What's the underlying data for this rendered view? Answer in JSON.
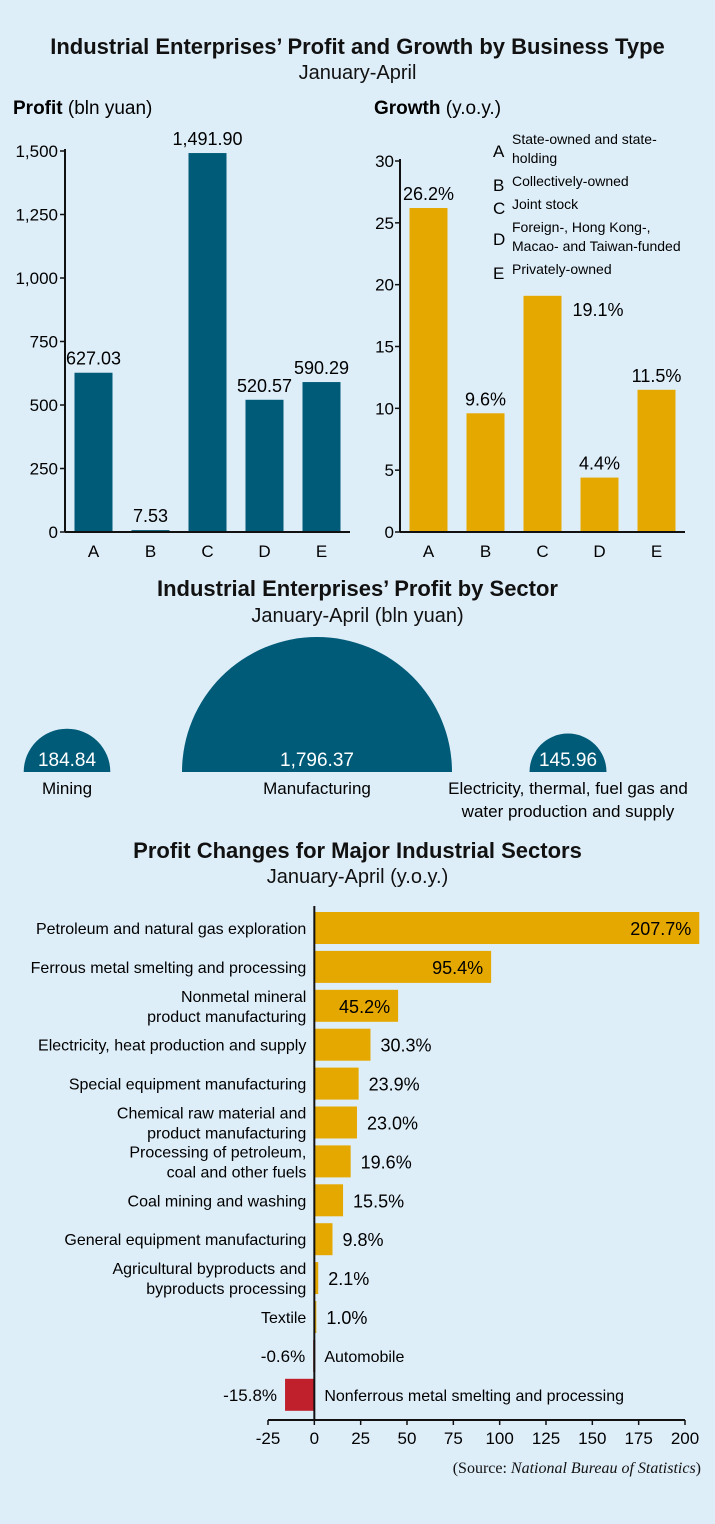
{
  "header": {
    "title": "Industrial Enterprises’ Profit and Growth by Business Type",
    "subtitle": "January-April"
  },
  "sector_header": {
    "title": "Industrial Enterprises’ Profit by Sector",
    "subtitle": "January-April (bln yuan)"
  },
  "changes_header": {
    "title": "Profit Changes for Major Industrial Sectors",
    "subtitle": "January-April (y.o.y.)"
  },
  "source": {
    "prefix": "(Source: ",
    "name": "National Bureau of Statistics",
    "suffix": ")"
  },
  "colors": {
    "teal": "#005b78",
    "gold": "#e5a800",
    "red": "#c01f2c",
    "background": "#deeef9"
  },
  "chart_data": [
    {
      "type": "bar",
      "ylabel_bold": "Profit",
      "ylabel_rest": " (bln yuan)",
      "categories": [
        "A",
        "B",
        "C",
        "D",
        "E"
      ],
      "values": [
        627.03,
        7.53,
        1491.9,
        520.57,
        590.29
      ],
      "value_labels": [
        "627.03",
        "7.53",
        "1,491.90",
        "520.57",
        "590.29"
      ],
      "ylim": [
        0,
        1500
      ],
      "yticks": [
        0,
        250,
        500,
        750,
        1000,
        1250,
        1500
      ],
      "ytick_labels": [
        "0",
        "250",
        "500",
        "750",
        "1,000",
        "1,250",
        "1,500"
      ],
      "color": "#005b78"
    },
    {
      "type": "bar",
      "ylabel_bold": "Growth",
      "ylabel_rest": " (y.o.y.)",
      "categories": [
        "A",
        "B",
        "C",
        "D",
        "E"
      ],
      "values": [
        26.2,
        9.6,
        19.1,
        4.4,
        11.5
      ],
      "value_labels": [
        "26.2%",
        "9.6%",
        "19.1%",
        "4.4%",
        "11.5%"
      ],
      "ylim": [
        0,
        30
      ],
      "yticks": [
        0,
        5,
        10,
        15,
        20,
        25,
        30
      ],
      "ytick_labels": [
        "0",
        "5",
        "10",
        "15",
        "20",
        "25",
        "30"
      ],
      "color": "#e5a800",
      "legend": [
        {
          "key": "A",
          "lines": [
            "State-owned and state-",
            "holding"
          ]
        },
        {
          "key": "B",
          "lines": [
            "Collectively-owned"
          ]
        },
        {
          "key": "C",
          "lines": [
            "Joint stock"
          ]
        },
        {
          "key": "D",
          "lines": [
            "Foreign-, Hong Kong-,",
            "Macao- and  Taiwan-funded"
          ]
        },
        {
          "key": "E",
          "lines": [
            "Privately-owned"
          ]
        }
      ]
    },
    {
      "type": "pie",
      "categories": [
        "Mining",
        "Manufacturing",
        "Electricity, thermal, fuel gas and water production and supply"
      ],
      "label_lines": [
        [
          "Mining"
        ],
        [
          "Manufacturing"
        ],
        [
          "Electricity, thermal, fuel gas and",
          "water production and supply"
        ]
      ],
      "values": [
        184.84,
        1796.37,
        145.96
      ],
      "value_labels": [
        "184.84",
        "1,796.37",
        "145.96"
      ],
      "color": "#005b78"
    },
    {
      "type": "bar",
      "orientation": "horizontal",
      "categories": [
        [
          "Petroleum and natural gas exploration"
        ],
        [
          "Ferrous metal smelting and processing"
        ],
        [
          "Nonmetal mineral",
          "product manufacturing"
        ],
        [
          "Electricity, heat production and supply"
        ],
        [
          "Special equipment manufacturing"
        ],
        [
          "Chemical raw material and",
          "product manufacturing"
        ],
        [
          "Processing of petroleum,",
          "coal and other fuels"
        ],
        [
          "Coal mining and washing"
        ],
        [
          "General equipment manufacturing"
        ],
        [
          "Agricultural byproducts and",
          "byproducts processing"
        ],
        [
          "Textile"
        ],
        [
          "Automobile"
        ],
        [
          "Nonferrous metal smelting and processing"
        ]
      ],
      "values": [
        207.7,
        95.4,
        45.2,
        30.3,
        23.9,
        23.0,
        19.6,
        15.5,
        9.8,
        2.1,
        1.0,
        -0.6,
        -15.8
      ],
      "value_labels": [
        "207.7%",
        "95.4%",
        "45.2%",
        "30.3%",
        "23.9%",
        "23.0%",
        "19.6%",
        "15.5%",
        "9.8%",
        "2.1%",
        "1.0%",
        "-0.6%",
        "-15.8%"
      ],
      "xlim": [
        -25,
        200
      ],
      "xticks": [
        -25,
        0,
        25,
        50,
        75,
        100,
        125,
        150,
        175,
        200
      ],
      "xtick_labels": [
        "-25",
        "0",
        "25",
        "50",
        "75",
        "100",
        "125",
        "150",
        "175",
        "200"
      ],
      "positive_color": "#e5a800",
      "negative_color": "#c01f2c"
    }
  ]
}
